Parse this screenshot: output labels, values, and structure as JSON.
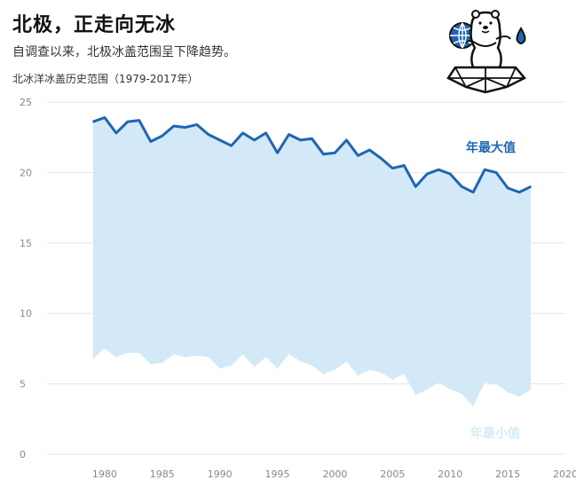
{
  "title": "北极，正走向无冰",
  "subtitle": "自调查以来，北极冰盖范围呈下降趋势。",
  "chart_label": "北冰洋冰盖历史范围（1979-2017年）",
  "icon": "polar-bear-on-ice-icon",
  "colors": {
    "max_line": "#1f66b3",
    "fill": "#d3e9f7",
    "min_label": "#d8ebf7",
    "grid": "#e6e6e6"
  },
  "chart_data": {
    "type": "area",
    "title": "北冰洋冰盖历史范围（1979-2017年）",
    "xlabel": "",
    "ylabel": "",
    "xlim": [
      1975,
      2020
    ],
    "ylim": [
      0,
      25
    ],
    "x_ticks": [
      "1980",
      "1985",
      "1990",
      "1995",
      "2000",
      "2005",
      "2010",
      "2015",
      "2020"
    ],
    "y_ticks": [
      "0",
      "5",
      "10",
      "15",
      "20",
      "25"
    ],
    "grid": true,
    "x": [
      1979,
      1980,
      1981,
      1982,
      1983,
      1984,
      1985,
      1986,
      1987,
      1988,
      1989,
      1990,
      1991,
      1992,
      1993,
      1994,
      1995,
      1996,
      1997,
      1998,
      1999,
      2000,
      2001,
      2002,
      2003,
      2004,
      2005,
      2006,
      2007,
      2008,
      2009,
      2010,
      2011,
      2012,
      2013,
      2014,
      2015,
      2016,
      2017
    ],
    "series": [
      {
        "name": "年最大值",
        "values": [
          23.6,
          23.9,
          22.8,
          23.6,
          23.7,
          22.2,
          22.6,
          23.3,
          23.2,
          23.4,
          22.7,
          22.3,
          21.9,
          22.8,
          22.3,
          22.8,
          21.4,
          22.7,
          22.3,
          22.4,
          21.3,
          21.4,
          22.3,
          21.2,
          21.6,
          21.0,
          20.3,
          20.5,
          19.0,
          19.9,
          20.2,
          19.9,
          19.0,
          18.6,
          20.2,
          20.0,
          18.9,
          18.6,
          19.0
        ]
      },
      {
        "name": "年最小值",
        "values": [
          6.8,
          7.5,
          6.9,
          7.2,
          7.2,
          6.4,
          6.5,
          7.1,
          6.9,
          7.0,
          6.9,
          6.1,
          6.3,
          7.1,
          6.2,
          6.9,
          6.1,
          7.1,
          6.6,
          6.3,
          5.7,
          6.0,
          6.6,
          5.6,
          6.0,
          5.8,
          5.3,
          5.7,
          4.2,
          4.6,
          5.1,
          4.6,
          4.3,
          3.4,
          5.1,
          5.0,
          4.4,
          4.1,
          4.6
        ]
      }
    ]
  }
}
